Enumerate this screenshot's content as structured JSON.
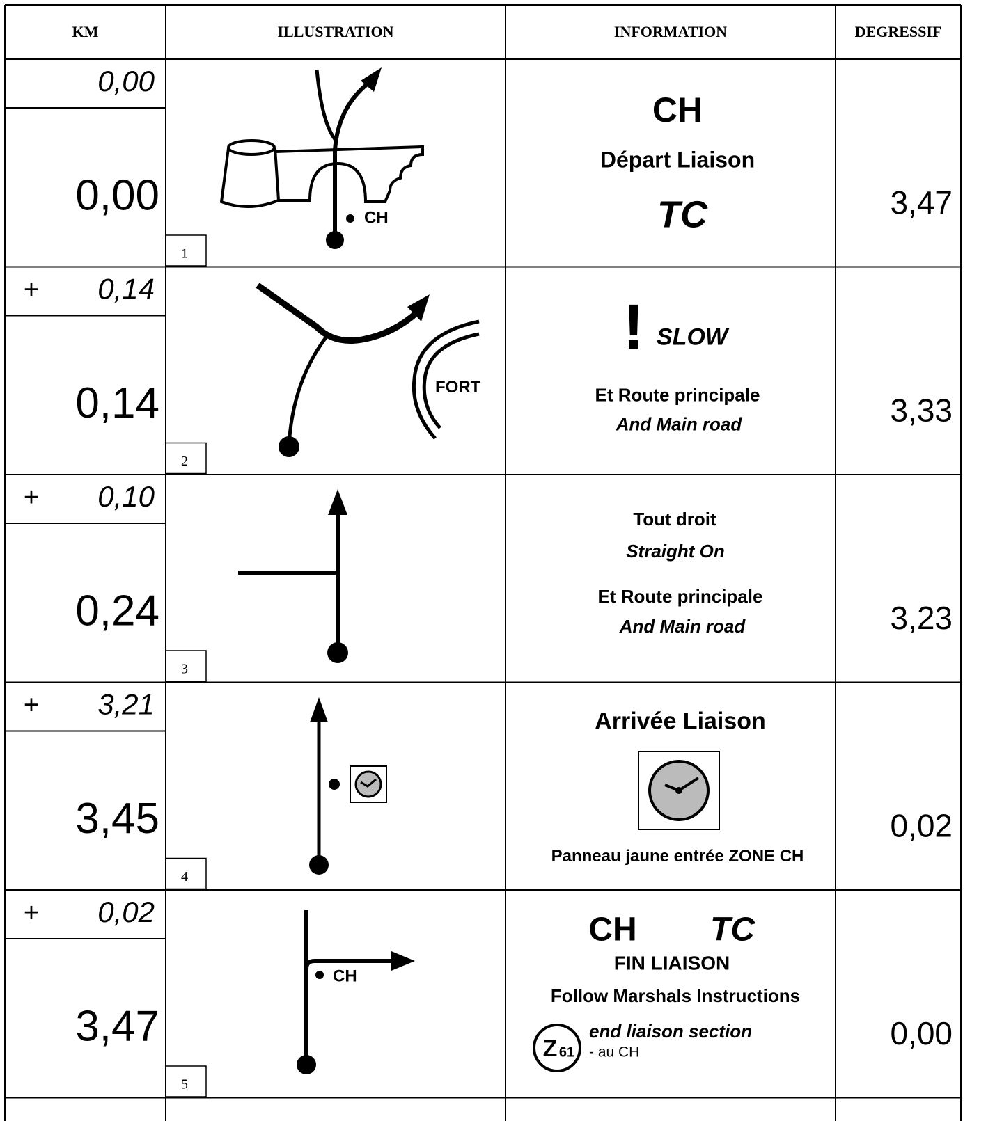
{
  "header": {
    "km": "KM",
    "illustration": "ILLUSTRATION",
    "information": "INFORMATION",
    "degressif": "DEGRESSIF"
  },
  "rows": [
    {
      "partial": "0,00",
      "total": "0,00",
      "number": "1",
      "illustration_label": "CH",
      "information": [
        "CH",
        "Départ Liaison",
        "TC"
      ],
      "degressif": "3,47"
    },
    {
      "sign": "+",
      "partial": "0,14",
      "total": "0,14",
      "number": "2",
      "illustration_label": "FORT",
      "information": [
        "!",
        "SLOW",
        "Et Route principale",
        "And Main road"
      ],
      "degressif": "3,33"
    },
    {
      "sign": "+",
      "partial": "0,10",
      "total": "0,24",
      "number": "3",
      "information": [
        "Tout droit",
        "Straight On",
        "Et Route principale",
        "And Main road"
      ],
      "degressif": "3,23"
    },
    {
      "sign": "+",
      "partial": "3,21",
      "total": "3,45",
      "number": "4",
      "information": [
        "Arrivée Liaison",
        "Panneau jaune entrée ZONE CH"
      ],
      "degressif": "0,02"
    },
    {
      "sign": "+",
      "partial": "0,02",
      "total": "3,47",
      "number": "5",
      "illustration_label": "CH",
      "information": [
        "CH",
        "TC",
        "FIN LIAISON",
        "Follow Marshals Instructions",
        "end liaison section",
        "- au CH"
      ],
      "badge": {
        "letter": "Z",
        "number": "61"
      },
      "degressif": "0,00"
    }
  ]
}
